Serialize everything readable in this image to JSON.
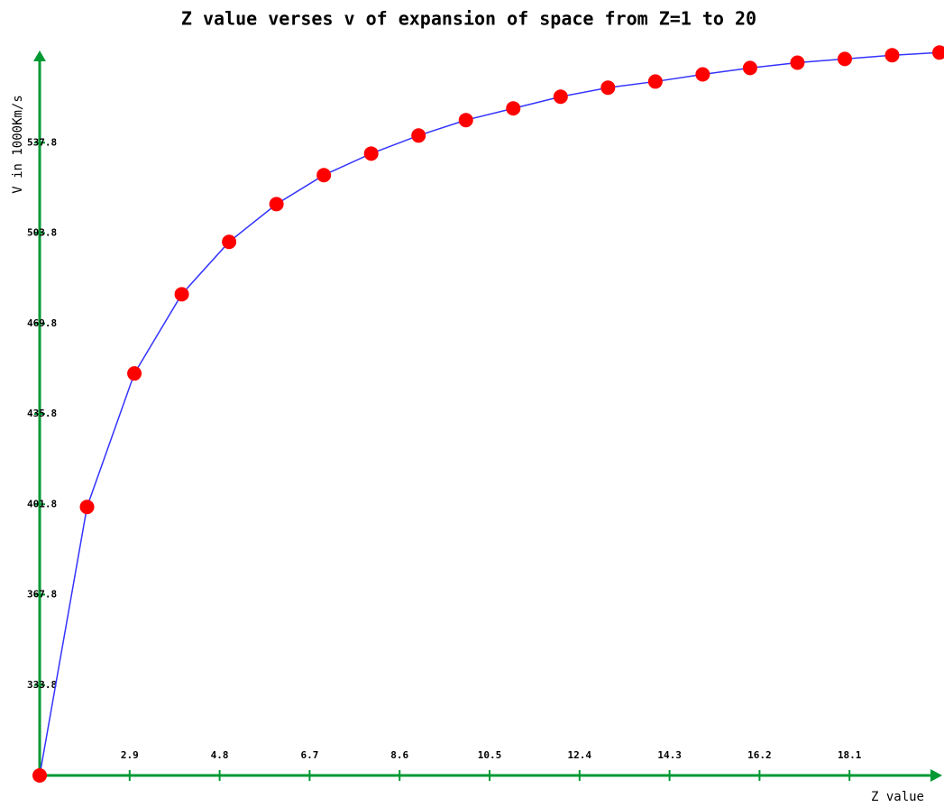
{
  "chart_data": {
    "type": "line",
    "title": "Z value verses v of expansion of space from Z=1 to 20",
    "x_label": "Z value",
    "y_label": "V in 1000Km/s",
    "x": [
      1,
      2,
      3,
      4,
      5,
      6,
      7,
      8,
      9,
      10,
      11,
      12,
      13,
      14,
      15,
      16,
      17,
      18,
      19,
      20
    ],
    "values": [
      299.8,
      400.8,
      451.0,
      480.8,
      500.5,
      514.7,
      525.6,
      533.7,
      540.5,
      546.3,
      550.7,
      555.1,
      558.5,
      560.8,
      563.5,
      565.9,
      567.9,
      569.3,
      570.7,
      571.7
    ],
    "line_color": "#3333ff",
    "marker_color": "#ff0000",
    "axis_color": "#009933",
    "xlim": [
      1,
      20
    ],
    "ylim": [
      299.8,
      571.8
    ],
    "xticks": [
      2.9,
      4.8,
      6.7,
      8.6,
      10.5,
      12.4,
      14.3,
      16.2,
      18.1
    ],
    "yticks": [
      333.8,
      367.8,
      401.8,
      435.8,
      469.8,
      503.8,
      537.8
    ]
  }
}
